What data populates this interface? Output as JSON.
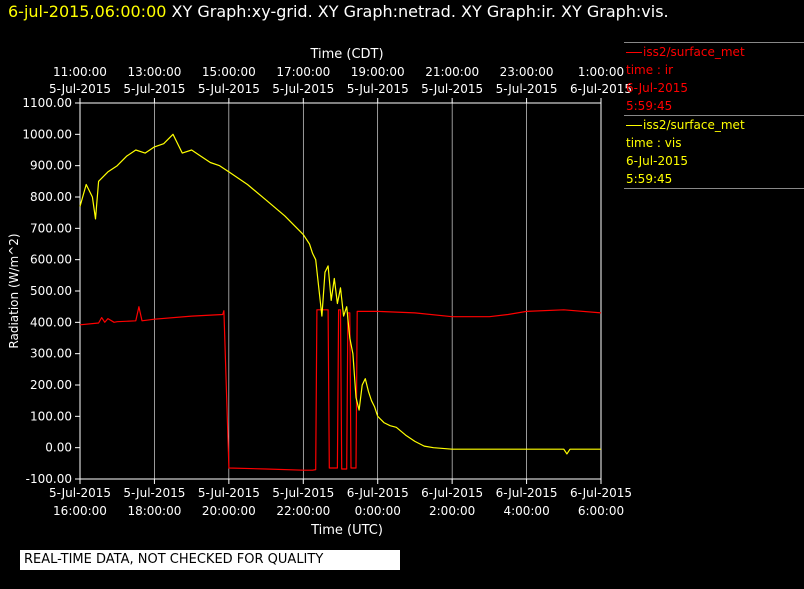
{
  "header": {
    "timestamp": "6-jul-2015,06:00:00",
    "graph_titles": "XY Graph:xy-grid.  XY Graph:netrad.  XY Graph:ir.  XY Graph:vis."
  },
  "legend": [
    {
      "station": "iss2/surface_met",
      "field": "time : ir",
      "date": "6-Jul-2015",
      "time": "5:59:45",
      "color": "#ff0000"
    },
    {
      "station": "iss2/surface_met",
      "field": "time : vis",
      "date": "6-Jul-2015",
      "time": "5:59:45",
      "color": "#ffff00"
    }
  ],
  "quality_notice": "REAL-TIME DATA, NOT CHECKED FOR QUALITY",
  "chart_data": {
    "type": "line",
    "ylabel": "Radiation (W/m^2)",
    "xlabel_bottom": "Time (UTC)",
    "xlabel_top": "Time (CDT)",
    "ylim": [
      -100,
      1100
    ],
    "xlim": [
      "5-Jul-2015 16:00:00",
      "6-Jul-2015 06:00:00"
    ],
    "grid": true,
    "y_ticks": [
      "1100.00",
      "1000.00",
      "900.00",
      "800.00",
      "700.00",
      "600.00",
      "500.00",
      "400.00",
      "300.00",
      "200.00",
      "100.00",
      "0.00",
      "-100.00"
    ],
    "x_ticks_bottom": [
      {
        "date": "5-Jul-2015",
        "time": "16:00:00"
      },
      {
        "date": "5-Jul-2015",
        "time": "18:00:00"
      },
      {
        "date": "5-Jul-2015",
        "time": "20:00:00"
      },
      {
        "date": "5-Jul-2015",
        "time": "22:00:00"
      },
      {
        "date": "6-Jul-2015",
        "time": "0:00:00"
      },
      {
        "date": "6-Jul-2015",
        "time": "2:00:00"
      },
      {
        "date": "6-Jul-2015",
        "time": "4:00:00"
      },
      {
        "date": "6-Jul-2015",
        "time": "6:00:00"
      }
    ],
    "x_ticks_top": [
      {
        "time": "11:00:00",
        "date": "5-Jul-2015"
      },
      {
        "time": "13:00:00",
        "date": "5-Jul-2015"
      },
      {
        "time": "15:00:00",
        "date": "5-Jul-2015"
      },
      {
        "time": "17:00:00",
        "date": "5-Jul-2015"
      },
      {
        "time": "19:00:00",
        "date": "5-Jul-2015"
      },
      {
        "time": "21:00:00",
        "date": "5-Jul-2015"
      },
      {
        "time": "23:00:00",
        "date": "5-Jul-2015"
      },
      {
        "time": "1:00:00",
        "date": "6-Jul-2015"
      }
    ],
    "series": [
      {
        "name": "time : ir",
        "color": "#ff0000",
        "x": [
          "5-Jul-2015 16:00",
          "5-Jul-2015 16:30",
          "5-Jul-2015 16:35",
          "5-Jul-2015 16:40",
          "5-Jul-2015 16:45",
          "5-Jul-2015 16:55",
          "5-Jul-2015 17:00",
          "5-Jul-2015 17:30",
          "5-Jul-2015 17:35",
          "5-Jul-2015 17:40",
          "5-Jul-2015 18:00",
          "5-Jul-2015 19:00",
          "5-Jul-2015 19:50",
          "5-Jul-2015 19:52",
          "5-Jul-2015 20:00",
          "5-Jul-2015 21:00",
          "5-Jul-2015 22:00",
          "5-Jul-2015 22:15",
          "5-Jul-2015 22:20",
          "5-Jul-2015 22:22",
          "5-Jul-2015 22:40",
          "5-Jul-2015 22:42",
          "5-Jul-2015 22:55",
          "5-Jul-2015 22:57",
          "5-Jul-2015 23:00",
          "5-Jul-2015 23:02",
          "5-Jul-2015 23:10",
          "5-Jul-2015 23:12",
          "5-Jul-2015 23:15",
          "5-Jul-2015 23:17",
          "5-Jul-2015 23:25",
          "5-Jul-2015 23:27",
          "6-Jul-2015 00:00",
          "6-Jul-2015 01:00",
          "6-Jul-2015 02:00",
          "6-Jul-2015 03:00",
          "6-Jul-2015 03:30",
          "6-Jul-2015 04:00",
          "6-Jul-2015 05:00",
          "6-Jul-2015 06:00"
        ],
        "values": [
          392,
          398,
          415,
          400,
          412,
          400,
          402,
          405,
          450,
          405,
          410,
          420,
          425,
          437,
          -65,
          -68,
          -72,
          -72,
          -70,
          440,
          440,
          -65,
          -65,
          440,
          440,
          -68,
          -68,
          430,
          430,
          -65,
          -65,
          435,
          435,
          430,
          418,
          418,
          425,
          435,
          440,
          430
        ]
      },
      {
        "name": "time : vis",
        "color": "#ffff00",
        "x": [
          "5-Jul-2015 16:00",
          "5-Jul-2015 16:10",
          "5-Jul-2015 16:20",
          "5-Jul-2015 16:25",
          "5-Jul-2015 16:30",
          "5-Jul-2015 16:45",
          "5-Jul-2015 17:00",
          "5-Jul-2015 17:15",
          "5-Jul-2015 17:30",
          "5-Jul-2015 17:45",
          "5-Jul-2015 18:00",
          "5-Jul-2015 18:15",
          "5-Jul-2015 18:30",
          "5-Jul-2015 18:45",
          "5-Jul-2015 19:00",
          "5-Jul-2015 19:15",
          "5-Jul-2015 19:30",
          "5-Jul-2015 19:45",
          "5-Jul-2015 20:00",
          "5-Jul-2015 20:30",
          "5-Jul-2015 21:00",
          "5-Jul-2015 21:30",
          "5-Jul-2015 22:00",
          "5-Jul-2015 22:10",
          "5-Jul-2015 22:15",
          "5-Jul-2015 22:20",
          "5-Jul-2015 22:25",
          "5-Jul-2015 22:30",
          "5-Jul-2015 22:35",
          "5-Jul-2015 22:40",
          "5-Jul-2015 22:45",
          "5-Jul-2015 22:50",
          "5-Jul-2015 22:55",
          "5-Jul-2015 23:00",
          "5-Jul-2015 23:05",
          "5-Jul-2015 23:10",
          "5-Jul-2015 23:15",
          "5-Jul-2015 23:20",
          "5-Jul-2015 23:25",
          "5-Jul-2015 23:30",
          "5-Jul-2015 23:35",
          "5-Jul-2015 23:40",
          "5-Jul-2015 23:45",
          "5-Jul-2015 23:50",
          "5-Jul-2015 23:55",
          "6-Jul-2015 00:00",
          "6-Jul-2015 00:10",
          "6-Jul-2015 00:20",
          "6-Jul-2015 00:30",
          "6-Jul-2015 00:45",
          "6-Jul-2015 01:00",
          "6-Jul-2015 01:15",
          "6-Jul-2015 01:30",
          "6-Jul-2015 02:00",
          "6-Jul-2015 03:00",
          "6-Jul-2015 04:00",
          "6-Jul-2015 05:00",
          "6-Jul-2015 05:05",
          "6-Jul-2015 05:10",
          "6-Jul-2015 06:00"
        ],
        "values": [
          770,
          840,
          800,
          730,
          850,
          880,
          900,
          930,
          950,
          940,
          960,
          970,
          1000,
          940,
          950,
          930,
          910,
          900,
          880,
          840,
          790,
          740,
          680,
          650,
          620,
          600,
          510,
          420,
          560,
          580,
          470,
          540,
          460,
          510,
          420,
          450,
          350,
          300,
          160,
          120,
          200,
          220,
          180,
          150,
          130,
          100,
          80,
          70,
          65,
          40,
          20,
          5,
          0,
          -5,
          -5,
          -5,
          -5,
          -20,
          -5,
          -5
        ]
      }
    ]
  }
}
